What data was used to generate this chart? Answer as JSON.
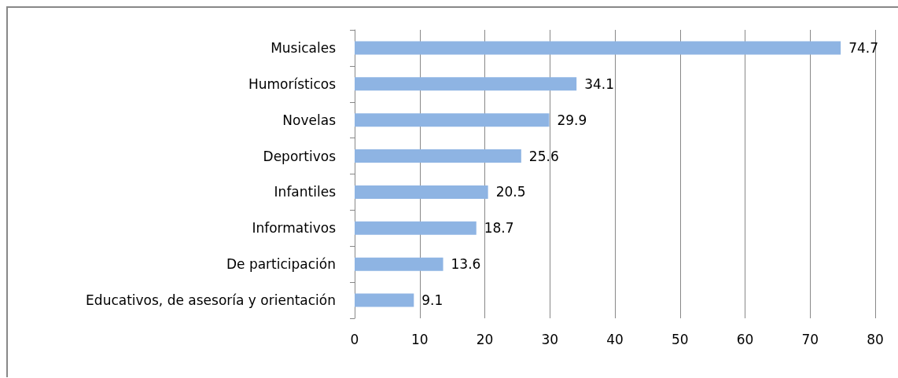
{
  "chart_data": {
    "type": "bar",
    "orientation": "horizontal",
    "categories": [
      "Musicales",
      "Humorísticos",
      "Novelas",
      "Deportivos",
      "Infantiles",
      "Informativos",
      "De participación",
      "Educativos, de asesoría y orientación"
    ],
    "values": [
      74.7,
      34.1,
      29.9,
      25.6,
      20.5,
      18.7,
      13.6,
      9.1
    ],
    "color": "#8eb4e3",
    "xlim": [
      0,
      80
    ],
    "xticks": [
      0,
      10,
      20,
      30,
      40,
      50,
      60,
      70,
      80
    ],
    "grid": "x",
    "data_labels": true
  }
}
